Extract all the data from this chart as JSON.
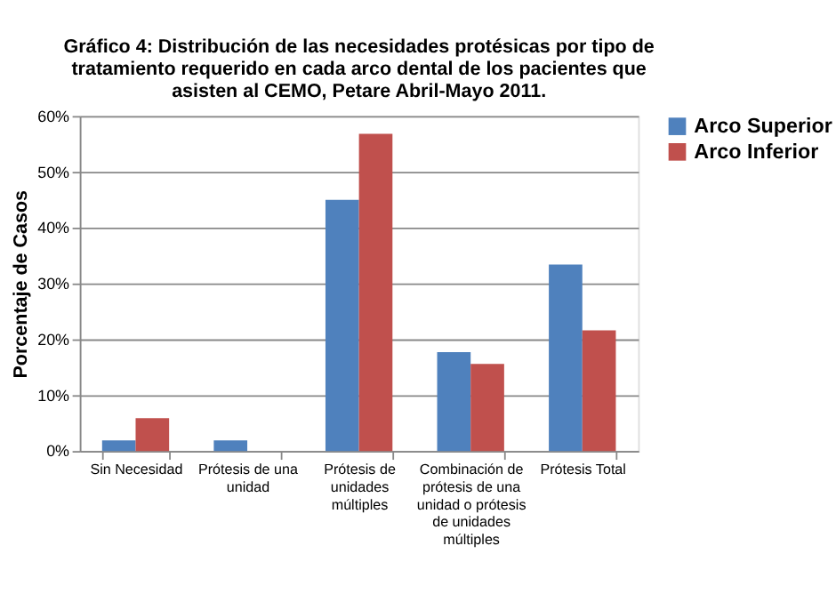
{
  "chart_data": {
    "type": "bar",
    "title": "Gráfico 4: Distribución de las necesidades protésicas por tipo de tratamiento requerido en cada arco dental de los pacientes que asisten al CEMO, Petare Abril-Mayo 2011.",
    "ylabel": "Porcentaje de Casos",
    "categories": [
      "Sin Necesidad",
      "Prótesis de una unidad",
      "Prótesis de unidades múltiples",
      "Combinación de prótesis de una unidad o prótesis de unidades múltiples",
      "Prótesis Total"
    ],
    "series": [
      {
        "name": "Arco Superior",
        "color": "#4f81bd",
        "values": [
          1.9,
          1.9,
          45.0,
          17.7,
          33.4
        ]
      },
      {
        "name": "Arco Inferior",
        "color": "#c0504d",
        "values": [
          5.9,
          0,
          56.8,
          15.6,
          21.6
        ]
      }
    ],
    "ylim": [
      0,
      60
    ],
    "yticks": [
      {
        "value": 0,
        "label": "0%"
      },
      {
        "value": 10,
        "label": "10%"
      },
      {
        "value": 20,
        "label": "20%"
      },
      {
        "value": 30,
        "label": "30%"
      },
      {
        "value": 40,
        "label": "40%"
      },
      {
        "value": 50,
        "label": "50%"
      },
      {
        "value": 60,
        "label": "60%"
      }
    ],
    "grid": "y",
    "legend": "right"
  }
}
